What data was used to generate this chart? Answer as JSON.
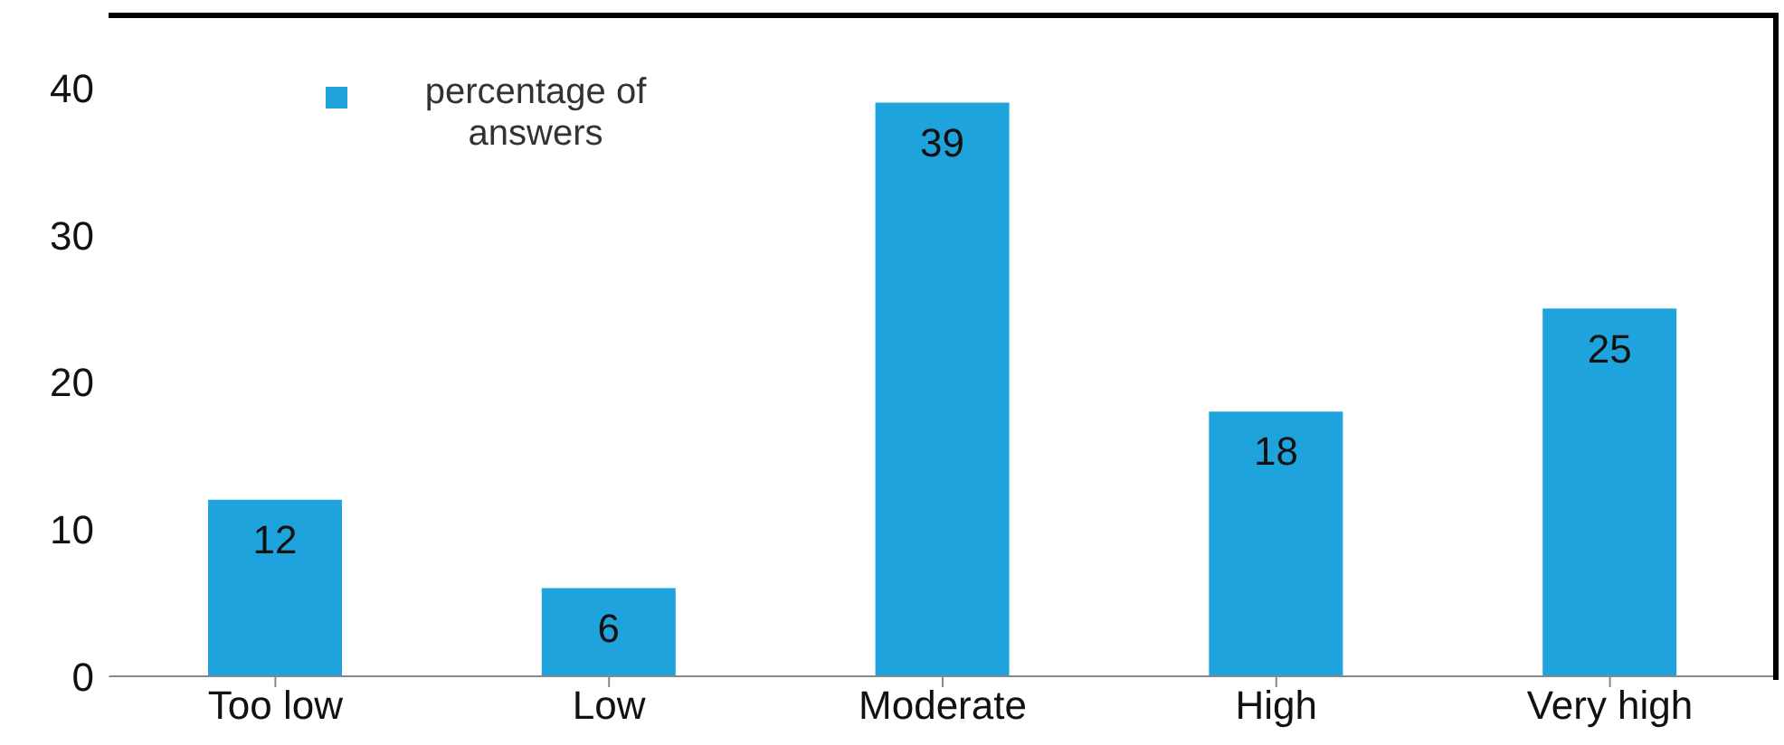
{
  "chart_data": {
    "type": "bar",
    "categories": [
      "Too low",
      "Low",
      "Moderate",
      "High",
      "Very high"
    ],
    "series": [
      {
        "name": "percentage of answers",
        "color": "#1fa3dc",
        "values": [
          12,
          6,
          39,
          18,
          25
        ]
      }
    ],
    "ylim": [
      0,
      45
    ],
    "yticks": [
      0,
      10,
      20,
      30,
      40
    ],
    "grid": false,
    "legend": "top left",
    "data_labels": true
  }
}
